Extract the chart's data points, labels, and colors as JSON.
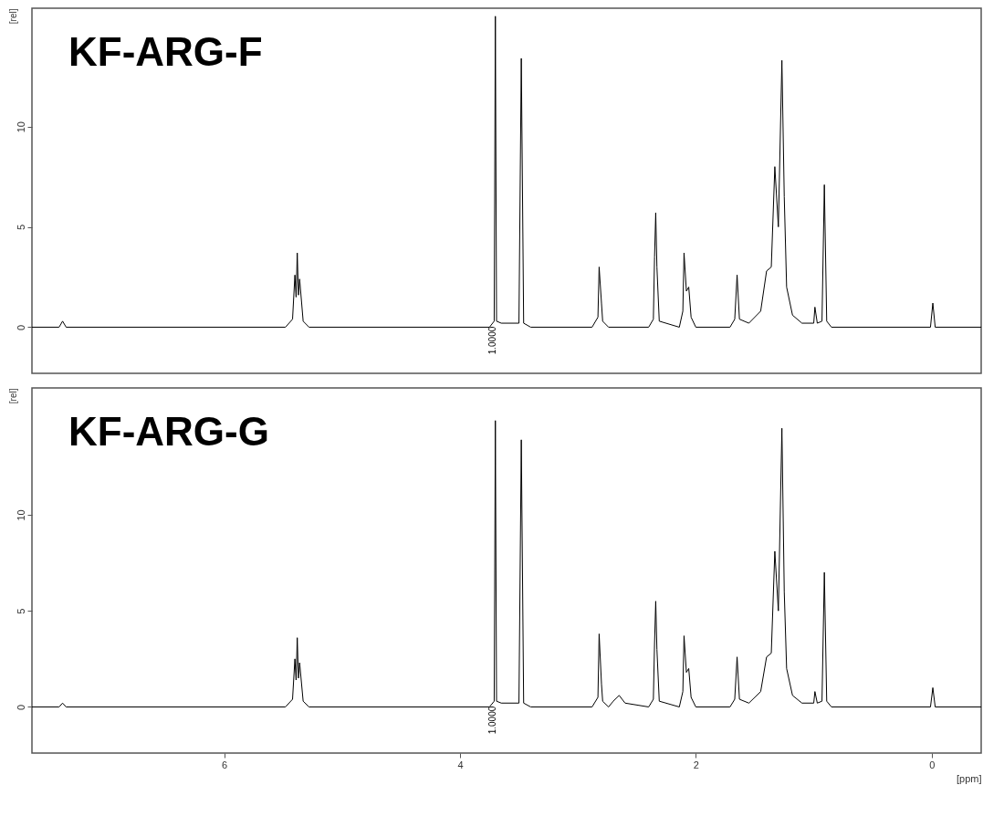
{
  "chart_data": [
    {
      "type": "line",
      "title": "KF-ARG-F",
      "ylabel": "[rel]",
      "color": "#000000",
      "xlim": [
        7.63,
        -0.42
      ],
      "ylim": [
        -2.3,
        15.9
      ],
      "yticks": [
        0,
        5,
        10
      ],
      "tick_labels": "y",
      "grid": false,
      "x": [
        7.63,
        7.4,
        7.37,
        7.34,
        5.48,
        5.42,
        5.4,
        5.39,
        5.38,
        5.37,
        5.36,
        5.33,
        5.28,
        3.75,
        3.71,
        3.7,
        3.69,
        3.65,
        3.5,
        3.48,
        3.46,
        3.4,
        2.88,
        2.83,
        2.82,
        2.8,
        2.79,
        2.74,
        2.4,
        2.36,
        2.35,
        2.34,
        2.33,
        2.31,
        2.14,
        2.11,
        2.1,
        2.08,
        2.06,
        2.04,
        2.0,
        1.71,
        1.67,
        1.65,
        1.63,
        1.55,
        1.45,
        1.4,
        1.36,
        1.33,
        1.3,
        1.27,
        1.25,
        1.23,
        1.18,
        1.1,
        1.0,
        0.99,
        0.97,
        0.93,
        0.91,
        0.89,
        0.85,
        0.01,
        -0.01,
        -0.03,
        -0.42
      ],
      "values": [
        0,
        0,
        0.3,
        0,
        0,
        0.4,
        2.6,
        1.5,
        3.7,
        1.6,
        2.4,
        0.3,
        0,
        0,
        0.3,
        15.5,
        0.3,
        0.2,
        0.2,
        13.4,
        0.2,
        0,
        0,
        0.5,
        3.0,
        1.2,
        0.3,
        0,
        0,
        0.4,
        3.5,
        5.7,
        3.0,
        0.3,
        0,
        0.8,
        3.7,
        1.8,
        2.0,
        0.5,
        0,
        0,
        0.4,
        2.6,
        0.4,
        0.2,
        0.8,
        2.8,
        3.0,
        8.0,
        5.0,
        13.3,
        6.5,
        2.0,
        0.6,
        0.2,
        0.2,
        1.0,
        0.2,
        0.3,
        7.1,
        0.3,
        0,
        0,
        1.2,
        0,
        0
      ],
      "annotations": [
        "1.0000"
      ]
    },
    {
      "type": "line",
      "title": "KF-ARG-G",
      "xlabel": "[ppm]",
      "ylabel": "[rel]",
      "color": "#000000",
      "xlim": [
        7.63,
        -0.42
      ],
      "ylim": [
        -2.4,
        16.6
      ],
      "xticks": [
        6,
        4,
        2,
        0
      ],
      "yticks": [
        0,
        5,
        10
      ],
      "grid": false,
      "x": [
        7.63,
        7.4,
        7.37,
        7.34,
        5.48,
        5.42,
        5.4,
        5.39,
        5.38,
        5.37,
        5.36,
        5.33,
        5.28,
        3.75,
        3.71,
        3.7,
        3.69,
        3.65,
        3.5,
        3.48,
        3.46,
        3.4,
        2.88,
        2.83,
        2.82,
        2.8,
        2.79,
        2.74,
        2.7,
        2.65,
        2.6,
        2.4,
        2.36,
        2.35,
        2.34,
        2.33,
        2.31,
        2.14,
        2.11,
        2.1,
        2.08,
        2.06,
        2.04,
        2.0,
        1.71,
        1.67,
        1.65,
        1.63,
        1.55,
        1.45,
        1.4,
        1.36,
        1.33,
        1.3,
        1.27,
        1.25,
        1.23,
        1.18,
        1.1,
        1.0,
        0.99,
        0.97,
        0.93,
        0.91,
        0.89,
        0.85,
        0.01,
        -0.01,
        -0.03,
        -0.42
      ],
      "values": [
        0,
        0,
        0.2,
        0,
        0,
        0.4,
        2.5,
        1.4,
        3.6,
        1.5,
        2.3,
        0.3,
        0,
        0,
        0.3,
        14.9,
        0.3,
        0.2,
        0.2,
        13.9,
        0.2,
        0,
        0,
        0.5,
        3.8,
        1.2,
        0.3,
        0,
        0.3,
        0.6,
        0.2,
        0,
        0.4,
        3.3,
        5.5,
        3.0,
        0.3,
        0,
        0.8,
        3.7,
        1.8,
        2.0,
        0.5,
        0,
        0,
        0.4,
        2.6,
        0.4,
        0.2,
        0.8,
        2.6,
        2.8,
        8.1,
        5.0,
        14.5,
        6.0,
        2.0,
        0.6,
        0.2,
        0.2,
        0.8,
        0.2,
        0.3,
        7.0,
        0.3,
        0,
        0,
        1.0,
        0,
        0
      ],
      "annotations": [
        "1.0000"
      ]
    }
  ]
}
